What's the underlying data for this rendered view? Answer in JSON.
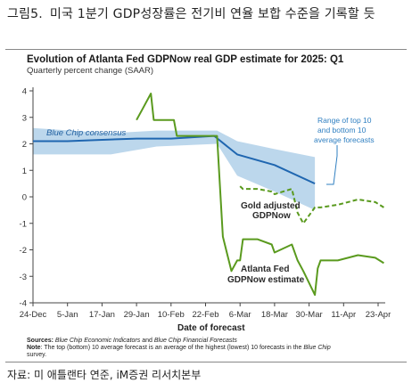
{
  "figure": {
    "number": "그림5.",
    "caption": "미국 1분기 GDP성장률은 전기비 연율 보합 수준을 기록할 듯",
    "source": "자료: 미 애틀랜타 연준, iM증권 리서치본부"
  },
  "chart_data": {
    "type": "line",
    "title": "Evolution of Atlanta Fed GDPNow real GDP estimate for 2025: Q1",
    "subtitle": "Quarterly percent change (SAAR)",
    "xlabel": "Date of forecast",
    "ylabel": "",
    "ylim": [
      -4,
      4
    ],
    "y_ticks": [
      4,
      3,
      2,
      1,
      0,
      -1,
      -2,
      -3,
      -4
    ],
    "x_ticks": [
      "24-Dec",
      "5-Jan",
      "17-Jan",
      "29-Jan",
      "10-Feb",
      "22-Feb",
      "6-Mar",
      "18-Mar",
      "30-Mar",
      "11-Apr",
      "23-Apr"
    ],
    "grid": false,
    "colors": {
      "atlanta_fed": "#5a9a1e",
      "gold_adjusted": "#5a9a1e",
      "blue_chip": "#1f66b0",
      "range_band": "#bcd7ec",
      "annotation": "#2f7fc1"
    },
    "series": [
      {
        "name": "Blue Chip consensus",
        "style": "solid",
        "points": [
          [
            "2024-12-24",
            2.1
          ],
          [
            "2025-01-05",
            2.1
          ],
          [
            "2025-01-17",
            2.15
          ],
          [
            "2025-01-29",
            2.2
          ],
          [
            "2025-02-10",
            2.2
          ],
          [
            "2025-02-25",
            2.3
          ],
          [
            "2025-03-05",
            1.6
          ],
          [
            "2025-03-18",
            1.2
          ],
          [
            "2025-04-01",
            0.5
          ]
        ]
      },
      {
        "name": "Atlanta Fed GDPNow estimate",
        "style": "solid",
        "points": [
          [
            "2025-01-29",
            2.9
          ],
          [
            "2025-01-31",
            3.3
          ],
          [
            "2025-02-03",
            3.9
          ],
          [
            "2025-02-04",
            2.9
          ],
          [
            "2025-02-07",
            2.9
          ],
          [
            "2025-02-11",
            2.9
          ],
          [
            "2025-02-12",
            2.3
          ],
          [
            "2025-02-19",
            2.3
          ],
          [
            "2025-02-26",
            2.3
          ],
          [
            "2025-02-28",
            -1.5
          ],
          [
            "2025-03-03",
            -2.8
          ],
          [
            "2025-03-05",
            -2.4
          ],
          [
            "2025-03-06",
            -2.4
          ],
          [
            "2025-03-07",
            -1.6
          ],
          [
            "2025-03-12",
            -1.6
          ],
          [
            "2025-03-17",
            -1.8
          ],
          [
            "2025-03-18",
            -2.1
          ],
          [
            "2025-03-24",
            -1.8
          ],
          [
            "2025-03-26",
            -2.4
          ],
          [
            "2025-03-28",
            -2.8
          ],
          [
            "2025-04-01",
            -3.7
          ],
          [
            "2025-04-02",
            -2.7
          ],
          [
            "2025-04-03",
            -2.4
          ],
          [
            "2025-04-09",
            -2.4
          ],
          [
            "2025-04-16",
            -2.2
          ],
          [
            "2025-04-22",
            -2.3
          ],
          [
            "2025-04-25",
            -2.5
          ]
        ]
      },
      {
        "name": "Gold adjusted GDPNow",
        "style": "dashed",
        "points": [
          [
            "2025-03-06",
            0.4
          ],
          [
            "2025-03-07",
            0.3
          ],
          [
            "2025-03-12",
            0.3
          ],
          [
            "2025-03-17",
            0.2
          ],
          [
            "2025-03-18",
            0.1
          ],
          [
            "2025-03-24",
            0.3
          ],
          [
            "2025-03-26",
            -0.6
          ],
          [
            "2025-03-28",
            -1.0
          ],
          [
            "2025-04-01",
            -0.4
          ],
          [
            "2025-04-02",
            -0.4
          ],
          [
            "2025-04-03",
            -0.4
          ],
          [
            "2025-04-09",
            -0.3
          ],
          [
            "2025-04-16",
            -0.1
          ],
          [
            "2025-04-22",
            -0.2
          ],
          [
            "2025-04-25",
            -0.4
          ]
        ]
      }
    ],
    "range_band": {
      "name": "Range of top 10 and bottom 10 average forecasts",
      "upper": [
        [
          "2024-12-24",
          2.6
        ],
        [
          "2025-01-20",
          2.4
        ],
        [
          "2025-02-05",
          2.5
        ],
        [
          "2025-02-26",
          2.5
        ],
        [
          "2025-03-05",
          2.1
        ],
        [
          "2025-03-18",
          1.8
        ],
        [
          "2025-04-01",
          1.5
        ]
      ],
      "lower": [
        [
          "2024-12-24",
          1.6
        ],
        [
          "2025-01-20",
          1.6
        ],
        [
          "2025-02-05",
          1.9
        ],
        [
          "2025-02-26",
          2.0
        ],
        [
          "2025-03-05",
          0.8
        ],
        [
          "2025-03-18",
          0.2
        ],
        [
          "2025-04-01",
          -0.5
        ]
      ]
    },
    "annotations": {
      "blue_chip_label": "Blue Chip consensus",
      "range_label": [
        "Range of top 10",
        "and bottom 10",
        "average forecasts"
      ],
      "gold_label": [
        "Gold adjusted",
        "GDPNow"
      ],
      "atlanta_label": [
        "Atlanta Fed",
        "GDPNow estimate"
      ]
    },
    "notes": {
      "sources_label": "Sources:",
      "sources_1": "Blue Chip Economic Indicators",
      "sources_and": "and",
      "sources_2": "Blue Chip Financial Forecasts",
      "note_label": "Note",
      "note_text": ": The top (bottom) 10 average forecast is an average of the highest (lowest) 10 forecasts in the",
      "note_bc": "Blue Chip",
      "note_text2": "survey."
    }
  }
}
